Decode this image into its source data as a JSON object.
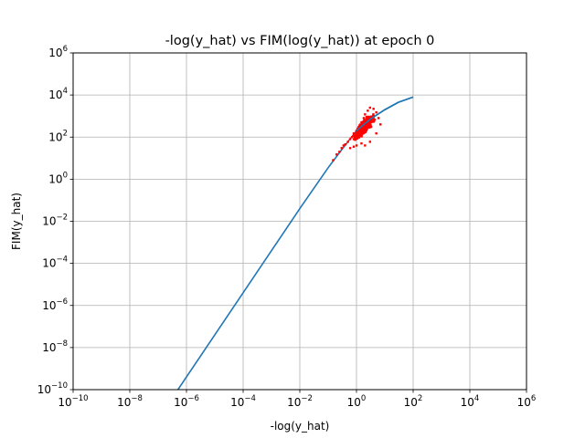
{
  "chart_data": {
    "type": "scatter",
    "title": "-log(y_hat) vs FIM(log(y_hat)) at epoch 0",
    "xlabel": "-log(y_hat)",
    "ylabel": "FIM(y_hat)",
    "xscale": "log",
    "yscale": "log",
    "xlim": [
      1e-10,
      1000000.0
    ],
    "ylim": [
      1e-10,
      1000000.0
    ],
    "x_ticks": [
      {
        "base": "10",
        "exp": "−10",
        "value": 1e-10
      },
      {
        "base": "10",
        "exp": "−8",
        "value": 1e-08
      },
      {
        "base": "10",
        "exp": "−6",
        "value": 1e-06
      },
      {
        "base": "10",
        "exp": "−4",
        "value": 0.0001
      },
      {
        "base": "10",
        "exp": "−2",
        "value": 0.01
      },
      {
        "base": "10",
        "exp": "0",
        "value": 1
      },
      {
        "base": "10",
        "exp": "2",
        "value": 100.0
      },
      {
        "base": "10",
        "exp": "4",
        "value": 10000.0
      },
      {
        "base": "10",
        "exp": "6",
        "value": 1000000.0
      }
    ],
    "y_ticks": [
      {
        "base": "10",
        "exp": "−10",
        "value": 1e-10
      },
      {
        "base": "10",
        "exp": "−8",
        "value": 1e-08
      },
      {
        "base": "10",
        "exp": "−6",
        "value": 1e-06
      },
      {
        "base": "10",
        "exp": "−4",
        "value": 0.0001
      },
      {
        "base": "10",
        "exp": "−2",
        "value": 0.01
      },
      {
        "base": "10",
        "exp": "0",
        "value": 1
      },
      {
        "base": "10",
        "exp": "2",
        "value": 100.0
      },
      {
        "base": "10",
        "exp": "4",
        "value": 10000.0
      },
      {
        "base": "10",
        "exp": "6",
        "value": 1000000.0
      }
    ],
    "grid": true,
    "series": [
      {
        "kind": "line",
        "color": "#1f77b4",
        "points": [
          [
            5e-07,
            1e-10
          ],
          [
            1e-06,
            4e-10
          ],
          [
            1e-05,
            4e-08
          ],
          [
            0.0001,
            4e-06
          ],
          [
            0.001,
            0.0004
          ],
          [
            0.01,
            0.04
          ],
          [
            0.1,
            3.5
          ],
          [
            0.3,
            25
          ],
          [
            1,
            200
          ],
          [
            3,
            700
          ],
          [
            10,
            2000
          ],
          [
            30,
            4500
          ],
          [
            100,
            8000
          ]
        ]
      },
      {
        "kind": "scatter",
        "color": "#ff0000",
        "cluster": {
          "center": [
            1.8,
            300
          ],
          "points": [
            [
              0.15,
              8
            ],
            [
              0.2,
              15
            ],
            [
              0.25,
              20
            ],
            [
              0.3,
              30
            ],
            [
              0.35,
              40
            ],
            [
              0.4,
              45
            ],
            [
              0.5,
              60
            ],
            [
              0.6,
              80
            ],
            [
              0.7,
              100
            ],
            [
              0.8,
              150
            ],
            [
              1.0,
              200
            ],
            [
              1.2,
              300
            ],
            [
              1.5,
              500
            ],
            [
              1.8,
              800
            ],
            [
              2.0,
              1200
            ],
            [
              2.5,
              1800
            ],
            [
              3.0,
              2500
            ],
            [
              4.0,
              2200
            ],
            [
              5.0,
              1500
            ],
            [
              6.0,
              800
            ],
            [
              7.0,
              400
            ],
            [
              5.0,
              150
            ],
            [
              3.0,
              60
            ],
            [
              2.0,
              40
            ],
            [
              1.5,
              50
            ],
            [
              1.0,
              40
            ],
            [
              0.8,
              35
            ],
            [
              0.6,
              30
            ]
          ]
        }
      }
    ]
  }
}
